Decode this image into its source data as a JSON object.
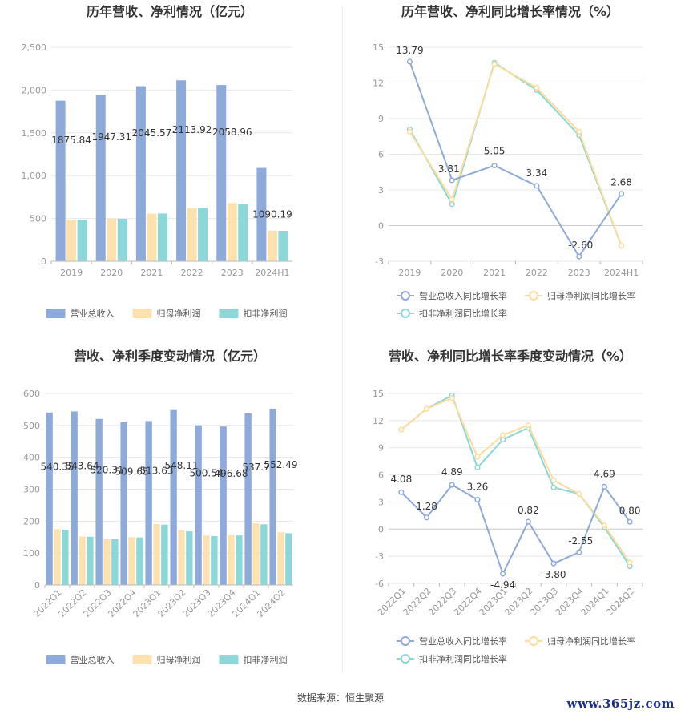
{
  "footer": {
    "source_label": "数据来源：恒生聚源"
  },
  "watermark": "www.365jz.com",
  "colors": {
    "revenue": "#8eaadb",
    "parent_np": "#fde2b0",
    "nonrecurring_np": "#8cd7d8",
    "revenue_line": "#8eaadb",
    "parent_line": "#fddc9c",
    "nonrecurring_line": "#8cd7d8"
  },
  "chart_data": [
    {
      "id": "annual_bar",
      "type": "bar",
      "title": "历年营收、净利情况（亿元）",
      "categories": [
        "2019",
        "2020",
        "2021",
        "2022",
        "2023",
        "2024H1"
      ],
      "ylim": [
        0,
        2500
      ],
      "yticks": [
        "0",
        "500",
        "1,000",
        "1,500",
        "2,000",
        "2,500"
      ],
      "series": [
        {
          "name": "营业总收入",
          "values": [
            1875.84,
            1947.31,
            2045.57,
            2113.92,
            2058.96,
            1090.19
          ],
          "labels": [
            "1875.84",
            "1947.31",
            "2045.57",
            "2113.92",
            "2058.96",
            "1090.19"
          ]
        },
        {
          "name": "归母净利润",
          "values": [
            480,
            497,
            556,
            619,
            680,
            359
          ]
        },
        {
          "name": "扣非净利润",
          "values": [
            483,
            496,
            558,
            622,
            668,
            356
          ]
        }
      ],
      "legend_position": "bottom"
    },
    {
      "id": "annual_growth",
      "type": "line",
      "title": "历年营收、净利同比增长率情况（%）",
      "categories": [
        "2019",
        "2020",
        "2021",
        "2022",
        "2023",
        "2024H1"
      ],
      "ylim": [
        -3,
        15
      ],
      "yticks": [
        "-3",
        "0",
        "3",
        "6",
        "9",
        "12",
        "15"
      ],
      "series": [
        {
          "name": "营业总收入同比增长率",
          "values": [
            13.79,
            3.81,
            5.05,
            3.34,
            -2.6,
            2.68
          ],
          "labels": [
            "13.79",
            "3.81",
            "5.05",
            "3.34",
            "-2.60",
            "2.68"
          ]
        },
        {
          "name": "归母净利润同比增长率",
          "values": [
            7.9,
            2.2,
            13.6,
            11.6,
            7.9,
            -1.7
          ]
        },
        {
          "name": "扣非净利润同比增长率",
          "values": [
            8.1,
            1.8,
            13.7,
            11.4,
            7.6,
            -1.7
          ]
        }
      ],
      "legend_position": "bottom"
    },
    {
      "id": "quarterly_bar",
      "type": "bar",
      "title": "营收、净利季度变动情况（亿元）",
      "categories": [
        "2022Q1",
        "2022Q2",
        "2022Q3",
        "2022Q4",
        "2023Q1",
        "2023Q2",
        "2023Q3",
        "2023Q4",
        "2024Q1",
        "2024Q2"
      ],
      "ylim": [
        0,
        600
      ],
      "yticks": [
        "0",
        "100",
        "200",
        "300",
        "400",
        "500",
        "600"
      ],
      "series": [
        {
          "name": "营业总收入",
          "values": [
            540.35,
            543.64,
            520.31,
            509.65,
            513.63,
            548.11,
            500.54,
            496.68,
            537.7,
            552.49
          ],
          "labels": [
            "540.35",
            "543.64",
            "520.31",
            "509.65",
            "513.63",
            "548.11",
            "500.54",
            "496.68",
            "537.7",
            "552.49"
          ]
        },
        {
          "name": "归母净利润",
          "values": [
            175,
            152,
            146,
            150,
            191,
            171,
            155,
            156,
            193,
            165
          ]
        },
        {
          "name": "扣非净利润",
          "values": [
            173,
            151,
            145,
            149,
            189,
            168,
            153,
            155,
            190,
            162
          ]
        }
      ],
      "legend_position": "bottom"
    },
    {
      "id": "quarterly_growth",
      "type": "line",
      "title": "营收、净利同比增长率季度变动情况（%）",
      "categories": [
        "2022Q1",
        "2022Q2",
        "2022Q3",
        "2022Q4",
        "2023Q1",
        "2023Q2",
        "2023Q3",
        "2023Q4",
        "2024Q1",
        "2024Q2"
      ],
      "ylim": [
        -6,
        15
      ],
      "yticks": [
        "-6",
        "-3",
        "0",
        "3",
        "6",
        "9",
        "12",
        "15"
      ],
      "series": [
        {
          "name": "营业总收入同比增长率",
          "values": [
            4.08,
            1.28,
            4.89,
            3.26,
            -4.94,
            0.82,
            -3.8,
            -2.55,
            4.69,
            0.8
          ],
          "labels": [
            "4.08",
            "1.28",
            "4.89",
            "3.26",
            "-4.94",
            "0.82",
            "-3.80",
            "-2.55",
            "4.69",
            "0.80"
          ]
        },
        {
          "name": "归母净利润同比增长率",
          "values": [
            11.0,
            13.3,
            14.5,
            8.0,
            10.4,
            11.5,
            5.4,
            3.9,
            0.4,
            -3.7
          ]
        },
        {
          "name": "扣非净利润同比增长率",
          "values": [
            11.0,
            13.3,
            14.8,
            6.8,
            9.9,
            11.2,
            4.6,
            3.9,
            0.2,
            -4.1
          ]
        }
      ],
      "legend_position": "bottom"
    }
  ]
}
